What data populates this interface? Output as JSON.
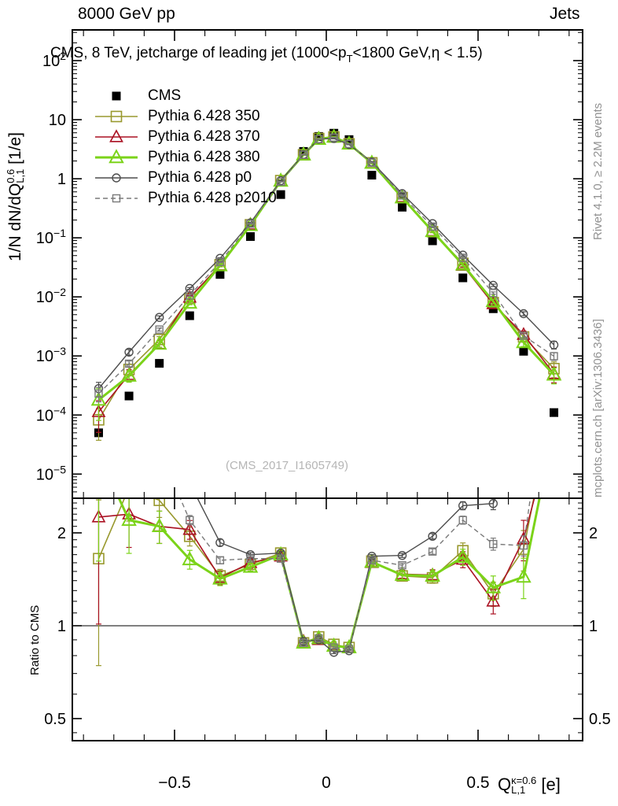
{
  "header": {
    "left": "8000 GeV pp",
    "right": "Jets"
  },
  "title": {
    "pre": "CMS, 8 TeV, jetcharge of leading jet (1000<p",
    "sub": "T",
    "post": "<1800 GeV,η < 1.5)"
  },
  "side_notes": {
    "top": "Rivet 4.1.0, ≥ 2.2M events",
    "bottom": "mcplots.cern.ch [arXiv:1306.3436]"
  },
  "watermark": "(CMS_2017_I1605749)",
  "ylabel": {
    "pre": "1/N dN/dQ",
    "sup": "0.6",
    "sub": "L,1",
    "unit": " [1/e]"
  },
  "ratio_label": "Ratio to CMS",
  "xlabel": {
    "base": "Q",
    "sup": "κ=0.6",
    "sub": "L,1",
    "unit": " [e]"
  },
  "colors": {
    "cms": "#000000",
    "py350": "#99992e",
    "py370": "#aa1122",
    "py380": "#7bd319",
    "p0": "#4d4d4d",
    "p2010": "#7a7a7a",
    "side_text": "#929292",
    "watermark": "#b5b5b5"
  },
  "chart_data": {
    "type": "line",
    "title": "CMS, 8 TeV, jetcharge of leading jet (1000<pT<1800 GeV, eta < 1.5)",
    "xlabel": "Q_L,1^k=0.6 [e]",
    "ylabel": "1/N dN/dQ_L,1^0.6 [1/e]",
    "ratio_ylabel": "Ratio to CMS",
    "legend_position": "top-left",
    "x": [
      -0.75,
      -0.65,
      -0.55,
      -0.45,
      -0.35,
      -0.25,
      -0.15,
      -0.075,
      -0.025,
      0.025,
      0.075,
      0.15,
      0.25,
      0.35,
      0.45,
      0.55,
      0.65,
      0.75
    ],
    "err_frac": [
      0.55,
      0.22,
      0.12,
      0.07,
      0.05,
      0.03,
      0.025,
      0.02,
      0.02,
      0.02,
      0.02,
      0.025,
      0.03,
      0.04,
      0.06,
      0.09,
      0.15,
      0.3
    ],
    "series": [
      {
        "label": "CMS",
        "marker": "fsquare",
        "color": "#000000",
        "lw": 1.5,
        "size": 11,
        "dash": "",
        "values": [
          5e-05,
          0.00021,
          0.00075,
          0.0048,
          0.024,
          0.105,
          0.54,
          2.9,
          5.2,
          5.9,
          4.6,
          1.15,
          0.33,
          0.089,
          0.021,
          0.0063,
          0.0012,
          0.00011
        ],
        "ratios": null
      },
      {
        "label": "Pythia 6.428 350",
        "marker": "square",
        "color": "#99992e",
        "lw": 1.6,
        "size": 13,
        "dash": "",
        "values": [
          8.3e-05,
          0.00059,
          0.0019,
          0.0094,
          0.035,
          0.166,
          0.93,
          2.55,
          4.8,
          5.1,
          3.9,
          1.86,
          0.48,
          0.127,
          0.037,
          0.008,
          0.0021,
          0.00061
        ],
        "ratios": [
          1.65,
          2.8,
          2.55,
          1.95,
          1.45,
          1.58,
          1.72,
          0.88,
          0.92,
          0.87,
          0.85,
          1.62,
          1.45,
          1.43,
          1.75,
          1.27,
          1.77,
          5.5
        ]
      },
      {
        "label": "Pythia 6.428 370",
        "marker": "triangle",
        "color": "#aa1122",
        "lw": 1.6,
        "size": 13,
        "dash": "",
        "values": [
          0.000113,
          0.00048,
          0.0016,
          0.0098,
          0.034,
          0.168,
          0.91,
          2.58,
          4.7,
          5.1,
          3.9,
          1.84,
          0.49,
          0.13,
          0.034,
          0.0076,
          0.0023,
          0.0005
        ],
        "ratios": [
          2.25,
          2.3,
          2.1,
          2.05,
          1.43,
          1.6,
          1.68,
          0.89,
          0.9,
          0.86,
          0.85,
          1.6,
          1.47,
          1.46,
          1.64,
          1.2,
          1.91,
          4.5
        ]
      },
      {
        "label": "Pythia 6.428 380",
        "marker": "triangle",
        "color": "#7bd319",
        "lw": 3,
        "size": 14,
        "dash": "",
        "values": [
          0.00018,
          0.00046,
          0.0016,
          0.0079,
          0.034,
          0.163,
          0.92,
          2.55,
          4.7,
          5.1,
          3.9,
          1.85,
          0.48,
          0.129,
          0.035,
          0.0084,
          0.0017,
          0.00048
        ],
        "ratios": [
          3.6,
          2.2,
          2.1,
          1.64,
          1.42,
          1.55,
          1.7,
          0.88,
          0.91,
          0.86,
          0.85,
          1.61,
          1.46,
          1.45,
          1.67,
          1.33,
          1.44,
          4.4
        ]
      },
      {
        "label": "Pythia 6.428 p0",
        "marker": "circle",
        "color": "#4d4d4d",
        "lw": 1.4,
        "size": 10,
        "dash": "",
        "values": [
          0.00028,
          0.00116,
          0.0045,
          0.0139,
          0.045,
          0.179,
          0.93,
          2.58,
          4.7,
          4.8,
          3.8,
          1.93,
          0.56,
          0.174,
          0.051,
          0.0157,
          0.0052,
          0.00154
        ],
        "ratios": [
          5.6,
          5.5,
          6.0,
          2.9,
          1.86,
          1.7,
          1.72,
          0.89,
          0.9,
          0.82,
          0.83,
          1.68,
          1.69,
          1.95,
          2.45,
          2.49,
          4.3,
          14.0
        ]
      },
      {
        "label": "Pythia 6.428 p2010",
        "marker": "square",
        "color": "#7a7a7a",
        "lw": 1.4,
        "size": 9,
        "dash": "6,4",
        "values": [
          0.00023,
          0.00074,
          0.0028,
          0.0106,
          0.039,
          0.173,
          0.89,
          2.55,
          4.7,
          5.0,
          3.9,
          1.87,
          0.52,
          0.155,
          0.046,
          0.0116,
          0.0022,
          0.00099
        ],
        "ratios": [
          4.5,
          3.5,
          3.7,
          2.2,
          1.63,
          1.65,
          1.65,
          0.88,
          0.91,
          0.85,
          0.84,
          1.63,
          1.57,
          1.74,
          2.2,
          1.84,
          1.82,
          9.0
        ]
      }
    ],
    "axes": {
      "x": {
        "min": -0.8367,
        "max": 0.8445,
        "major": [
          -0.5,
          0,
          0.5
        ],
        "labels": [
          "−0.5",
          "0",
          "0.5"
        ],
        "minor_step": 0.1
      },
      "y_main": {
        "scale": "log",
        "min": 3.9e-06,
        "max": 331,
        "label_decades": [
          2,
          1,
          0,
          -1,
          -2,
          -3,
          -4,
          -5
        ]
      },
      "y_ratio": {
        "scale": "log",
        "min": 0.424,
        "max": 2.59,
        "ticks": [
          2,
          1,
          0.5
        ],
        "labels": [
          "2",
          "1",
          "0.5"
        ],
        "unity_line": 1
      }
    },
    "grid": false
  }
}
